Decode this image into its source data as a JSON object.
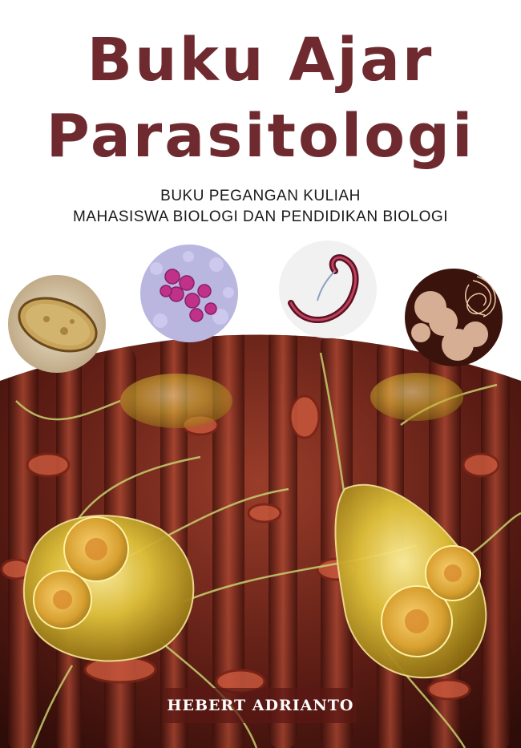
{
  "book": {
    "title_line1": "Buku Ajar",
    "title_line2": "Parasitologi",
    "subtitle_line1": "BUKU PEGANGAN KULIAH",
    "subtitle_line2": "MAHASISWA BIOLOGI DAN PENDIDIKAN BIOLOGI",
    "author": "HEBERT ADRIANTO"
  },
  "colors": {
    "title": "#6e2a2f",
    "subtitle": "#1a1a1a",
    "author_band": "#5a1814",
    "author_text": "#ffffff"
  }
}
